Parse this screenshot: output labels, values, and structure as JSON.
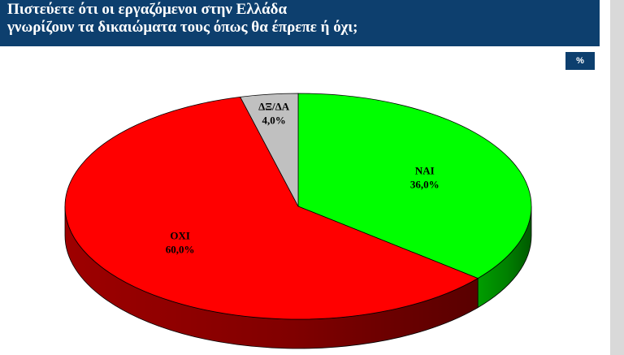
{
  "header": {
    "title_line1": "Πιστεύετε ότι οι εργαζόμενοι στην Ελλάδα",
    "title_line2": "γνωρίζουν τα δικαιώματα τους όπως θα έπρεπε ή όχι;"
  },
  "unit_badge": "%",
  "colors": {
    "header_bg": "#0d3f6e",
    "nai": "#00ff00",
    "oxi": "#ff0000",
    "dk": "#c0c0c0"
  },
  "chart_data": {
    "type": "pie",
    "title": "Πιστεύετε ότι οι εργαζόμενοι στην Ελλάδα γνωρίζουν τα δικαιώματα τους όπως θα έπρεπε ή όχι;",
    "unit": "%",
    "categories": [
      "ΝΑΙ",
      "ΟΧΙ",
      "ΔΞ/ΔΑ"
    ],
    "values": [
      36.0,
      60.0,
      4.0
    ],
    "value_labels": [
      "36,0%",
      "60,0%",
      "4,0%"
    ],
    "colors": [
      "#00ff00",
      "#ff0000",
      "#c0c0c0"
    ],
    "style": "3d-pie",
    "legend": "none"
  }
}
